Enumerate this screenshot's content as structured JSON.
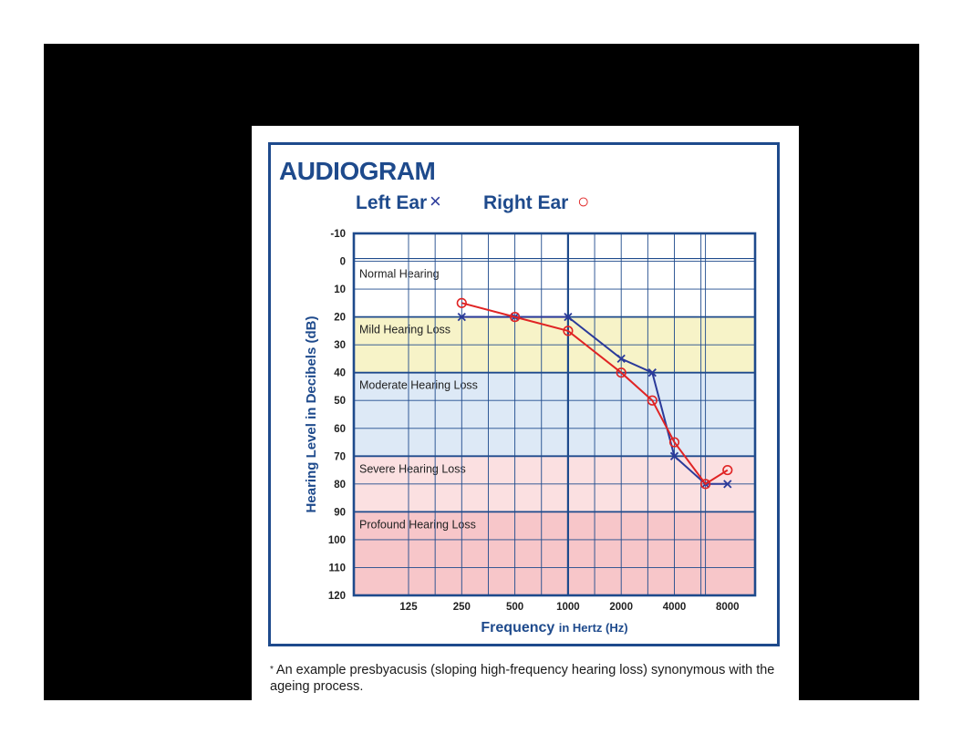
{
  "page": {
    "title": "AUDIOGRAM",
    "legend_left": "Left Ear",
    "legend_left_symbol": "×",
    "legend_right": "Right Ear",
    "legend_right_symbol": "○",
    "footnote_star": "*",
    "footnote": "An example presbyacusis (sloping high-frequency hearing loss) synonymous with the ageing process."
  },
  "colors": {
    "frame": "#000000",
    "border": "#1e4a8c",
    "left_ear": "#2b3a9a",
    "right_ear": "#e02424",
    "band_normal": "#ffffff",
    "band_mild": "#f7f3c8",
    "band_moderate": "#dde9f6",
    "band_severe": "#fbe0e1",
    "band_profound": "#f7c6c9"
  },
  "chart_data": {
    "type": "line",
    "title": "AUDIOGRAM",
    "xlabel_main": "Frequency",
    "xlabel_sub": "in Hertz (Hz)",
    "ylabel": "Hearing Level in Decibels (dB)",
    "x_ticks": [
      "125",
      "250",
      "500",
      "1000",
      "2000",
      "4000",
      "8000"
    ],
    "y_ticks": [
      -10,
      0,
      10,
      20,
      30,
      40,
      50,
      60,
      70,
      80,
      90,
      100,
      110,
      120
    ],
    "ylim": [
      -10,
      120
    ],
    "y_inverted": true,
    "x_scale": "log2 octaves",
    "grid": true,
    "bands": [
      {
        "name": "Normal Hearing",
        "from": 0,
        "to": 20
      },
      {
        "name": "Mild Hearing Loss",
        "from": 20,
        "to": 40
      },
      {
        "name": "Moderate Hearing Loss",
        "from": 40,
        "to": 70
      },
      {
        "name": "Severe Hearing Loss",
        "from": 70,
        "to": 90
      },
      {
        "name": "Profound Hearing Loss",
        "from": 90,
        "to": 120
      }
    ],
    "series": [
      {
        "name": "Left Ear",
        "marker": "x",
        "color": "#2b3a9a",
        "x": [
          250,
          500,
          1000,
          2000,
          3000,
          4000,
          6000,
          8000
        ],
        "y": [
          20,
          20,
          20,
          35,
          40,
          70,
          80,
          80
        ]
      },
      {
        "name": "Right Ear",
        "marker": "o",
        "color": "#e02424",
        "x": [
          250,
          500,
          1000,
          2000,
          3000,
          4000,
          6000,
          8000
        ],
        "y": [
          15,
          20,
          25,
          40,
          50,
          65,
          80,
          75
        ]
      }
    ]
  }
}
